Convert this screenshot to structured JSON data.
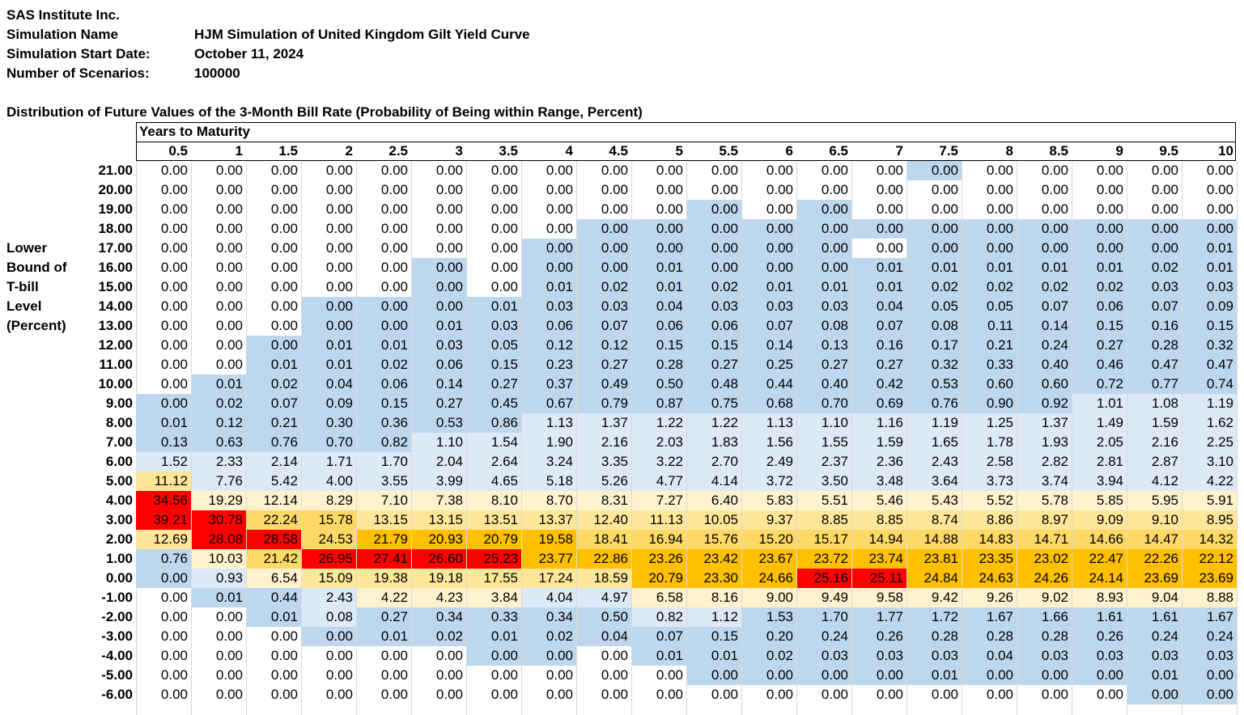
{
  "header": {
    "company": "SAS Institute Inc.",
    "sim_name_label": "Simulation Name",
    "sim_name": "HJM Simulation of United Kingdom Gilt Yield Curve",
    "start_date_label": "Simulation Start Date:",
    "start_date": "October 11, 2024",
    "scenarios_label": "Number of Scenarios:",
    "scenarios": "100000"
  },
  "table_title": "Distribution of Future Values of the 3-Month Bill Rate (Probability of Being within Range, Percent)",
  "col_group_label": "Years to Maturity",
  "row_axis_label": [
    "Lower",
    "Bound of",
    "T-bill",
    "Level",
    "(Percent)"
  ],
  "colors": {
    "white": "#ffffff",
    "light_blue": "#dde9f6",
    "blue": "#bdd7ee",
    "pale_yellow": "#fff2cc",
    "yellow": "#ffe699",
    "gold": "#ffd966",
    "orange": "#ffc000",
    "red": "#ff0000"
  },
  "maturities": [
    "0.5",
    "1",
    "1.5",
    "2",
    "2.5",
    "3",
    "3.5",
    "4",
    "4.5",
    "5",
    "5.5",
    "6",
    "6.5",
    "7",
    "7.5",
    "8",
    "8.5",
    "9",
    "9.5",
    "10"
  ],
  "rows": [
    {
      "bound": "21.00",
      "values": [
        "0.00",
        "0.00",
        "0.00",
        "0.00",
        "0.00",
        "0.00",
        "0.00",
        "0.00",
        "0.00",
        "0.00",
        "0.00",
        "0.00",
        "0.00",
        "0.00",
        "0.00",
        "0.00",
        "0.00",
        "0.00",
        "0.00",
        "0.00"
      ]
    },
    {
      "bound": "20.00",
      "values": [
        "0.00",
        "0.00",
        "0.00",
        "0.00",
        "0.00",
        "0.00",
        "0.00",
        "0.00",
        "0.00",
        "0.00",
        "0.00",
        "0.00",
        "0.00",
        "0.00",
        "0.00",
        "0.00",
        "0.00",
        "0.00",
        "0.00",
        "0.00"
      ]
    },
    {
      "bound": "19.00",
      "values": [
        "0.00",
        "0.00",
        "0.00",
        "0.00",
        "0.00",
        "0.00",
        "0.00",
        "0.00",
        "0.00",
        "0.00",
        "0.00",
        "0.00",
        "0.00",
        "0.00",
        "0.00",
        "0.00",
        "0.00",
        "0.00",
        "0.00",
        "0.00"
      ]
    },
    {
      "bound": "18.00",
      "values": [
        "0.00",
        "0.00",
        "0.00",
        "0.00",
        "0.00",
        "0.00",
        "0.00",
        "0.00",
        "0.00",
        "0.00",
        "0.00",
        "0.00",
        "0.00",
        "0.00",
        "0.00",
        "0.00",
        "0.00",
        "0.00",
        "0.00",
        "0.00"
      ]
    },
    {
      "bound": "17.00",
      "values": [
        "0.00",
        "0.00",
        "0.00",
        "0.00",
        "0.00",
        "0.00",
        "0.00",
        "0.00",
        "0.00",
        "0.00",
        "0.00",
        "0.00",
        "0.00",
        "0.00",
        "0.00",
        "0.00",
        "0.00",
        "0.00",
        "0.00",
        "0.01"
      ]
    },
    {
      "bound": "16.00",
      "values": [
        "0.00",
        "0.00",
        "0.00",
        "0.00",
        "0.00",
        "0.00",
        "0.00",
        "0.00",
        "0.00",
        "0.01",
        "0.00",
        "0.00",
        "0.00",
        "0.01",
        "0.01",
        "0.01",
        "0.01",
        "0.01",
        "0.02",
        "0.01"
      ]
    },
    {
      "bound": "15.00",
      "values": [
        "0.00",
        "0.00",
        "0.00",
        "0.00",
        "0.00",
        "0.00",
        "0.00",
        "0.01",
        "0.02",
        "0.01",
        "0.02",
        "0.01",
        "0.01",
        "0.01",
        "0.02",
        "0.02",
        "0.02",
        "0.02",
        "0.03",
        "0.03"
      ]
    },
    {
      "bound": "14.00",
      "values": [
        "0.00",
        "0.00",
        "0.00",
        "0.00",
        "0.00",
        "0.00",
        "0.01",
        "0.03",
        "0.03",
        "0.04",
        "0.03",
        "0.03",
        "0.03",
        "0.04",
        "0.05",
        "0.05",
        "0.07",
        "0.06",
        "0.07",
        "0.09"
      ]
    },
    {
      "bound": "13.00",
      "values": [
        "0.00",
        "0.00",
        "0.00",
        "0.00",
        "0.00",
        "0.01",
        "0.03",
        "0.06",
        "0.07",
        "0.06",
        "0.06",
        "0.07",
        "0.08",
        "0.07",
        "0.08",
        "0.11",
        "0.14",
        "0.15",
        "0.16",
        "0.15"
      ]
    },
    {
      "bound": "12.00",
      "values": [
        "0.00",
        "0.00",
        "0.00",
        "0.01",
        "0.01",
        "0.03",
        "0.05",
        "0.12",
        "0.12",
        "0.15",
        "0.15",
        "0.14",
        "0.13",
        "0.16",
        "0.17",
        "0.21",
        "0.24",
        "0.27",
        "0.28",
        "0.32"
      ]
    },
    {
      "bound": "11.00",
      "values": [
        "0.00",
        "0.00",
        "0.01",
        "0.01",
        "0.02",
        "0.06",
        "0.15",
        "0.23",
        "0.27",
        "0.28",
        "0.27",
        "0.25",
        "0.27",
        "0.27",
        "0.32",
        "0.33",
        "0.40",
        "0.46",
        "0.47",
        "0.47"
      ]
    },
    {
      "bound": "10.00",
      "values": [
        "0.00",
        "0.01",
        "0.02",
        "0.04",
        "0.06",
        "0.14",
        "0.27",
        "0.37",
        "0.49",
        "0.50",
        "0.48",
        "0.44",
        "0.40",
        "0.42",
        "0.53",
        "0.60",
        "0.60",
        "0.72",
        "0.77",
        "0.74"
      ]
    },
    {
      "bound": "9.00",
      "values": [
        "0.00",
        "0.02",
        "0.07",
        "0.09",
        "0.15",
        "0.27",
        "0.45",
        "0.67",
        "0.79",
        "0.87",
        "0.75",
        "0.68",
        "0.70",
        "0.69",
        "0.76",
        "0.90",
        "0.92",
        "1.01",
        "1.08",
        "1.19"
      ]
    },
    {
      "bound": "8.00",
      "values": [
        "0.01",
        "0.12",
        "0.21",
        "0.30",
        "0.36",
        "0.53",
        "0.86",
        "1.13",
        "1.37",
        "1.22",
        "1.22",
        "1.13",
        "1.10",
        "1.16",
        "1.19",
        "1.25",
        "1.37",
        "1.49",
        "1.59",
        "1.62"
      ]
    },
    {
      "bound": "7.00",
      "values": [
        "0.13",
        "0.63",
        "0.76",
        "0.70",
        "0.82",
        "1.10",
        "1.54",
        "1.90",
        "2.16",
        "2.03",
        "1.83",
        "1.56",
        "1.55",
        "1.59",
        "1.65",
        "1.78",
        "1.93",
        "2.05",
        "2.16",
        "2.25"
      ]
    },
    {
      "bound": "6.00",
      "values": [
        "1.52",
        "2.33",
        "2.14",
        "1.71",
        "1.70",
        "2.04",
        "2.64",
        "3.24",
        "3.35",
        "3.22",
        "2.70",
        "2.49",
        "2.37",
        "2.36",
        "2.43",
        "2.58",
        "2.82",
        "2.81",
        "2.87",
        "3.10"
      ]
    },
    {
      "bound": "5.00",
      "values": [
        "11.12",
        "7.76",
        "5.42",
        "4.00",
        "3.55",
        "3.99",
        "4.65",
        "5.18",
        "5.26",
        "4.77",
        "4.14",
        "3.72",
        "3.50",
        "3.48",
        "3.64",
        "3.73",
        "3.74",
        "3.94",
        "4.12",
        "4.22"
      ]
    },
    {
      "bound": "4.00",
      "values": [
        "34.56",
        "19.29",
        "12.14",
        "8.29",
        "7.10",
        "7.38",
        "8.10",
        "8.70",
        "8.31",
        "7.27",
        "6.40",
        "5.83",
        "5.51",
        "5.46",
        "5.43",
        "5.52",
        "5.78",
        "5.85",
        "5.95",
        "5.91"
      ]
    },
    {
      "bound": "3.00",
      "values": [
        "39.21",
        "30.78",
        "22.24",
        "15.78",
        "13.15",
        "13.15",
        "13.51",
        "13.37",
        "12.40",
        "11.13",
        "10.05",
        "9.37",
        "8.85",
        "8.85",
        "8.74",
        "8.86",
        "8.97",
        "9.09",
        "9.10",
        "8.95"
      ]
    },
    {
      "bound": "2.00",
      "values": [
        "12.69",
        "28.08",
        "28.58",
        "24.53",
        "21.79",
        "20.93",
        "20.79",
        "19.58",
        "18.41",
        "16.94",
        "15.76",
        "15.20",
        "15.17",
        "14.94",
        "14.88",
        "14.83",
        "14.71",
        "14.66",
        "14.47",
        "14.32"
      ]
    },
    {
      "bound": "1.00",
      "values": [
        "0.76",
        "10.03",
        "21.42",
        "26.95",
        "27.41",
        "26.60",
        "25.23",
        "23.77",
        "22.86",
        "23.26",
        "23.42",
        "23.67",
        "23.72",
        "23.74",
        "23.81",
        "23.35",
        "23.02",
        "22.47",
        "22.26",
        "22.12"
      ]
    },
    {
      "bound": "0.00",
      "values": [
        "0.00",
        "0.93",
        "6.54",
        "15.09",
        "19.38",
        "19.18",
        "17.55",
        "17.24",
        "18.59",
        "20.79",
        "23.30",
        "24.66",
        "25.16",
        "25.11",
        "24.84",
        "24.63",
        "24.26",
        "24.14",
        "23.69",
        "23.69"
      ]
    },
    {
      "bound": "-1.00",
      "values": [
        "0.00",
        "0.01",
        "0.44",
        "2.43",
        "4.22",
        "4.23",
        "3.84",
        "4.04",
        "4.97",
        "6.58",
        "8.16",
        "9.00",
        "9.49",
        "9.58",
        "9.42",
        "9.26",
        "9.02",
        "8.93",
        "9.04",
        "8.88"
      ]
    },
    {
      "bound": "-2.00",
      "values": [
        "0.00",
        "0.00",
        "0.01",
        "0.08",
        "0.27",
        "0.34",
        "0.33",
        "0.34",
        "0.50",
        "0.82",
        "1.12",
        "1.53",
        "1.70",
        "1.77",
        "1.72",
        "1.67",
        "1.66",
        "1.61",
        "1.61",
        "1.67"
      ]
    },
    {
      "bound": "-3.00",
      "values": [
        "0.00",
        "0.00",
        "0.00",
        "0.00",
        "0.01",
        "0.02",
        "0.01",
        "0.02",
        "0.04",
        "0.07",
        "0.15",
        "0.20",
        "0.24",
        "0.26",
        "0.28",
        "0.28",
        "0.28",
        "0.26",
        "0.24",
        "0.24"
      ]
    },
    {
      "bound": "-4.00",
      "values": [
        "0.00",
        "0.00",
        "0.00",
        "0.00",
        "0.00",
        "0.00",
        "0.00",
        "0.00",
        "0.00",
        "0.01",
        "0.01",
        "0.02",
        "0.03",
        "0.03",
        "0.03",
        "0.04",
        "0.03",
        "0.03",
        "0.03",
        "0.03"
      ]
    },
    {
      "bound": "-5.00",
      "values": [
        "0.00",
        "0.00",
        "0.00",
        "0.00",
        "0.00",
        "0.00",
        "0.00",
        "0.00",
        "0.00",
        "0.00",
        "0.00",
        "0.00",
        "0.00",
        "0.00",
        "0.01",
        "0.00",
        "0.00",
        "0.00",
        "0.01",
        "0.00"
      ]
    },
    {
      "bound": "-6.00",
      "values": [
        "0.00",
        "0.00",
        "0.00",
        "0.00",
        "0.00",
        "0.00",
        "0.00",
        "0.00",
        "0.00",
        "0.00",
        "0.00",
        "0.00",
        "0.00",
        "0.00",
        "0.00",
        "0.00",
        "0.00",
        "0.00",
        "0.00",
        "0.00"
      ]
    }
  ],
  "fills": [
    "WWWWWWWWWWWWWWBWWWWW",
    "WWWWWWWWWWWWWWWWWWWW",
    "WWWWWWWWWWBWBWWWWWWW",
    "WWWWWWWWBBBBBBBBBBBB",
    "WWWWWWWBBBBBBWBBBBBB",
    "WWWWWBWBBBBBBBBBBBBB",
    "WWWWWBWBBBBBBBBBBBBB",
    "WWWBBBBBBBBBBBBBBBBB",
    "WWWBBBBBBBBBBBBBBBBB",
    "WWBBBBBBBBBBBBBBBBBB",
    "WWBBBBBBBBBBBBBBBBBB",
    "WBBBBBBBBBBBBBBBBBBB",
    "BBBBBBBBBBBBBBBBBLLL",
    "BBBBBBBLLLLLLLLLLLLL",
    "BBBBBLLLLLLLLLLLLLLL",
    "LLLLLLLLLLLLLLLLLLLL",
    "YLLLLLLLLLLLLLLLLLLL",
    "RPPPPPPPPPPPPPPPPPPP",
    "RRGGYYYYYYYYYYYYYYYY",
    "YRRGOOOOGGGGGGGGGGGG",
    "BPGRRRROOOOOOOOOOOOO",
    "BLPYYYYYYOOORROOOOOO",
    "WBBLPPPLLPPPPPPPPPPP",
    "WWBLBBBBBLLBBBBBBBBB",
    "WWWBBBBBBBBBBBBBBBBB",
    "WWWWWWBBWBBBBBBBBBBB",
    "WWWWWWWWWWBBBBBBBBBB",
    "WWWWWWWWWWWWWWWWWWBB"
  ]
}
